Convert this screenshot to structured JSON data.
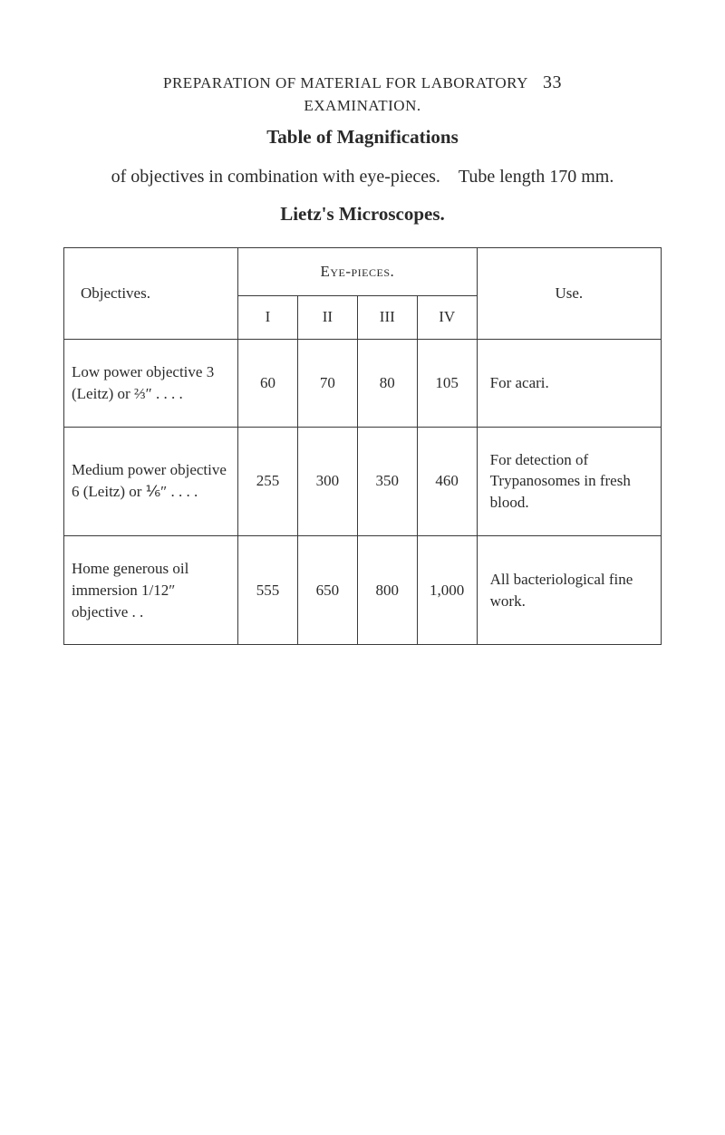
{
  "header": {
    "running_head": "PREPARATION OF MATERIAL FOR LABORATORY",
    "page_number": "33",
    "subhead": "EXAMINATION."
  },
  "title1": "Table of Magnifications",
  "paragraph": "of objectives in combination with eye-pieces. Tube length 170 mm.",
  "title2": "Lietz's Microscopes.",
  "table": {
    "objectives_label": "Objectives.",
    "eyepieces_label": "Eye-pieces.",
    "use_label": "Use.",
    "romans": [
      "I",
      "II",
      "III",
      "IV"
    ],
    "rows": [
      {
        "objective": "Low power objective 3 (Leitz) or ⅔″ . .   . .",
        "values": [
          "60",
          "70",
          "80",
          "105"
        ],
        "use": "For acari."
      },
      {
        "objective": "Medium power objective 6 (Leitz) or ⅙″ . .   . .",
        "values": [
          "255",
          "300",
          "350",
          "460"
        ],
        "use": "For detection of Trypanosomes in fresh blood."
      },
      {
        "objective": "Home generous oil immersion 1/12″ objective     . .",
        "values": [
          "555",
          "650",
          "800",
          "1,000"
        ],
        "use": "All bacteriological fine work."
      }
    ],
    "border_color": "#3a3a3a",
    "background": "#ffffff",
    "text_color": "#2a2a2a",
    "font_size_body": 17,
    "font_size_title": 21
  }
}
